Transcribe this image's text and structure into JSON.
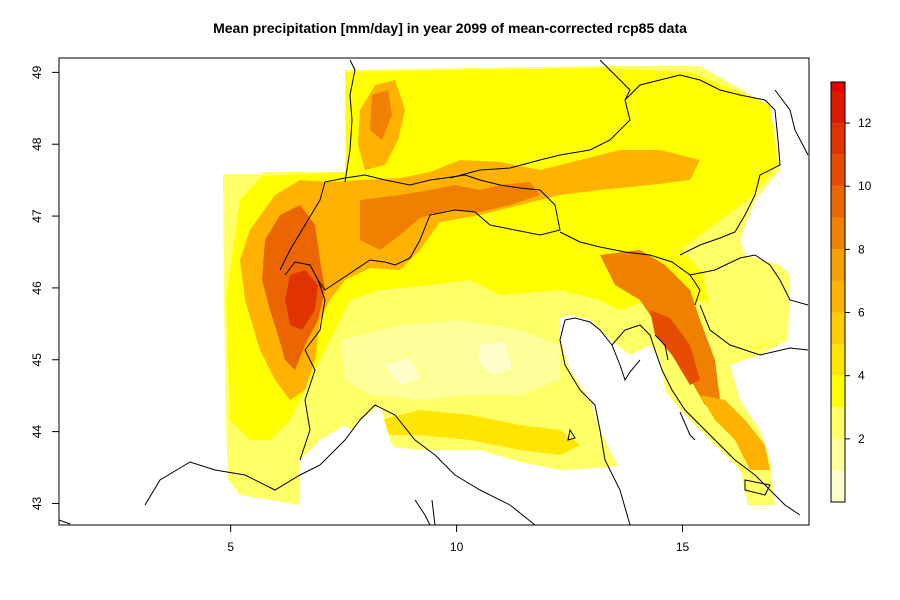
{
  "title": "Mean precipitation [mm/day] in year 2099 of mean-corrected rcp85 data",
  "axes": {
    "x_ticks": [
      "5",
      "10",
      "15"
    ],
    "y_ticks": [
      "43",
      "44",
      "45",
      "46",
      "47",
      "48",
      "49"
    ],
    "x_range": [
      1.2,
      17.8
    ],
    "y_range": [
      42.7,
      49.2
    ]
  },
  "legend": {
    "labels": [
      "2",
      "4",
      "6",
      "8",
      "10",
      "12"
    ],
    "levels": [
      0,
      1,
      2,
      3,
      4,
      5,
      6,
      7,
      8,
      9,
      10,
      11,
      12,
      13
    ],
    "range": [
      0,
      13.3
    ],
    "colors": [
      "#FFFFCC",
      "#FFFF99",
      "#FFFF66",
      "#FFFF00",
      "#FFE600",
      "#FFCC00",
      "#FFB300",
      "#F5A000",
      "#F08000",
      "#EB6600",
      "#E64D00",
      "#E03300",
      "#DB1A00",
      "#E60000"
    ]
  },
  "chart_data": {
    "type": "heatmap",
    "title": "Mean precipitation [mm/day] in year 2099 of mean-corrected rcp85 data",
    "xlabel": "",
    "ylabel": "",
    "xlim": [
      1.2,
      17.8
    ],
    "ylim": [
      42.7,
      49.2
    ],
    "colorbar_ticks": [
      2,
      4,
      6,
      8,
      10,
      12
    ],
    "colorbar_range": [
      0,
      13.3
    ],
    "grid": false
  }
}
